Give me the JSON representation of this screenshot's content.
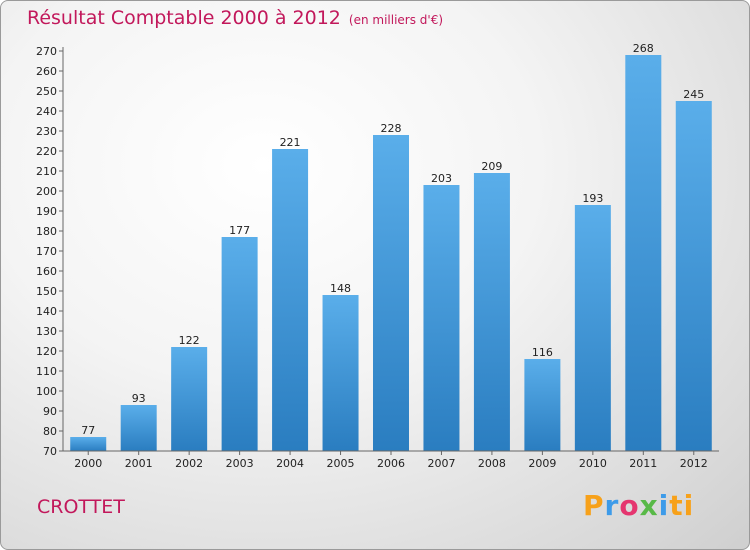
{
  "header": {
    "title": "Résultat Comptable 2000 à 2012",
    "subtitle": "(en milliers d'€)"
  },
  "footer": {
    "place": "CROTTET",
    "logo_letters": [
      "P",
      "r",
      "o",
      "x",
      "i",
      "t",
      "i"
    ]
  },
  "colors": {
    "title": "#c2185b",
    "bar_top": "#5aaeea",
    "bar_bottom": "#2a7dc0"
  },
  "chart_data": {
    "type": "bar",
    "title": "Résultat Comptable 2000 à 2012",
    "ylabel": "en milliers d'€",
    "xlabel": "",
    "categories": [
      "2000",
      "2001",
      "2002",
      "2003",
      "2004",
      "2005",
      "2006",
      "2007",
      "2008",
      "2009",
      "2010",
      "2011",
      "2012"
    ],
    "values": [
      77,
      93,
      122,
      177,
      221,
      148,
      228,
      203,
      209,
      116,
      193,
      268,
      245
    ],
    "ylim": [
      70,
      270
    ],
    "ytick_step": 10,
    "grid": false
  }
}
